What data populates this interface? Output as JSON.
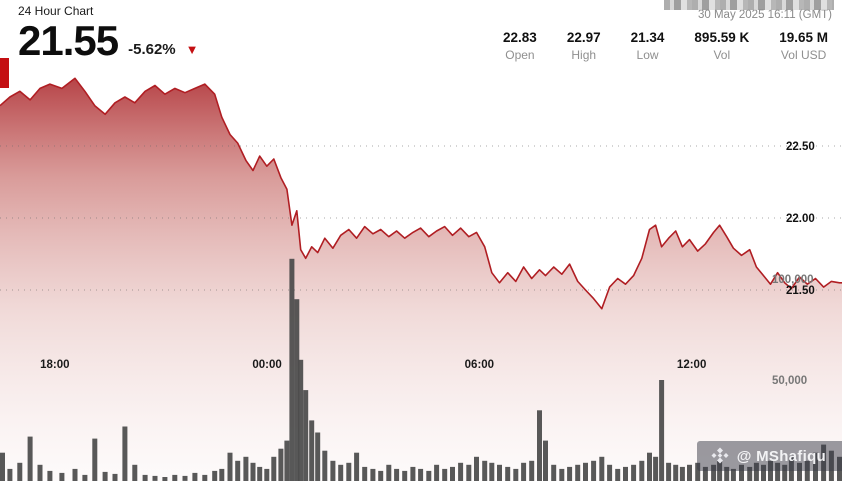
{
  "header": {
    "chart_label": "24 Hour Chart",
    "price": "21.55",
    "change_pct": "-5.62%",
    "down_arrow": "▼",
    "timestamp": "30 May 2025 16:11 (GMT)",
    "stats": [
      {
        "value": "22.83",
        "label": "Open"
      },
      {
        "value": "22.97",
        "label": "High"
      },
      {
        "value": "21.34",
        "label": "Low"
      },
      {
        "value": "895.59 K",
        "label": "Vol"
      },
      {
        "value": "19.65 M",
        "label": "Vol USD"
      }
    ]
  },
  "watermark": {
    "handle": "@ MShafiqu",
    "icon": "binance-diamond"
  },
  "colors": {
    "line_red": "#b01e23",
    "accent_red": "#c40f12",
    "volume_gray": "#4a4a4a",
    "grid_gray": "#666666",
    "label_dark": "#111111",
    "label_gray": "#777777"
  },
  "chart_data": {
    "type": "area",
    "title": "24 Hour Chart",
    "x_unit": "hours since chart start",
    "x_domain": [
      0,
      23.8
    ],
    "x_ticks": [
      {
        "t": 1.55,
        "label": "18:00"
      },
      {
        "t": 7.55,
        "label": "00:00"
      },
      {
        "t": 13.55,
        "label": "06:00"
      },
      {
        "t": 19.55,
        "label": "12:00"
      }
    ],
    "y_ticks": [
      {
        "price": 22.5,
        "label": "22.50"
      },
      {
        "price": 22.0,
        "label": "22.00"
      },
      {
        "price": 21.5,
        "label": "21.50"
      }
    ],
    "volume_ticks": [
      {
        "vol": 100000,
        "label": "100,000"
      },
      {
        "vol": 50000,
        "label": "50,000"
      }
    ],
    "summary": {
      "open": 22.83,
      "high": 22.97,
      "low": 21.34,
      "last": 21.55,
      "change_pct": -5.62,
      "volume": "895.59 K",
      "volume_usd": "19.65 M"
    },
    "t": [
      0,
      0.28,
      0.56,
      0.85,
      1.13,
      1.41,
      1.75,
      2.12,
      2.4,
      2.68,
      2.97,
      3.25,
      3.53,
      3.81,
      4.1,
      4.38,
      4.66,
      4.94,
      5.23,
      5.51,
      5.79,
      6.07,
      6.27,
      6.5,
      6.72,
      6.95,
      7.15,
      7.34,
      7.54,
      7.74,
      7.94,
      8.11,
      8.25,
      8.39,
      8.5,
      8.64,
      8.81,
      8.98,
      9.18,
      9.41,
      9.63,
      9.86,
      10.08,
      10.31,
      10.54,
      10.76,
      10.99,
      11.21,
      11.44,
      11.67,
      11.89,
      12.12,
      12.34,
      12.57,
      12.79,
      13.02,
      13.25,
      13.47,
      13.7,
      13.9,
      14.12,
      14.35,
      14.58,
      14.8,
      15.03,
      15.25,
      15.42,
      15.65,
      15.88,
      16.1,
      16.33,
      16.55,
      16.78,
      17.01,
      17.23,
      17.46,
      17.68,
      17.91,
      18.14,
      18.36,
      18.53,
      18.7,
      18.9,
      19.1,
      19.29,
      19.49,
      19.72,
      19.94,
      20.17,
      20.34,
      20.54,
      20.73,
      20.96,
      21.19,
      21.38,
      21.58,
      21.78,
      21.98,
      22.18,
      22.37,
      22.6,
      22.82,
      23.05,
      23.28,
      23.5,
      23.73
    ],
    "price": [
      22.78,
      22.84,
      22.88,
      22.82,
      22.9,
      22.93,
      22.9,
      22.97,
      22.88,
      22.78,
      22.72,
      22.8,
      22.84,
      22.8,
      22.88,
      22.92,
      22.86,
      22.9,
      22.87,
      22.9,
      22.93,
      22.86,
      22.7,
      22.58,
      22.52,
      22.4,
      22.33,
      22.43,
      22.36,
      22.41,
      22.28,
      22.2,
      21.95,
      22.05,
      21.78,
      21.72,
      21.8,
      21.76,
      21.86,
      21.79,
      21.88,
      21.92,
      21.86,
      21.94,
      21.89,
      21.92,
      21.87,
      21.91,
      21.86,
      21.9,
      21.93,
      21.87,
      21.91,
      21.94,
      21.88,
      21.93,
      21.87,
      21.9,
      21.8,
      21.62,
      21.55,
      21.62,
      21.56,
      21.66,
      21.58,
      21.64,
      21.6,
      21.66,
      21.61,
      21.68,
      21.56,
      21.5,
      21.44,
      21.37,
      21.52,
      21.58,
      21.54,
      21.6,
      21.72,
      21.92,
      21.95,
      21.8,
      21.86,
      21.91,
      21.8,
      21.85,
      21.77,
      21.82,
      21.9,
      21.95,
      21.87,
      21.79,
      21.74,
      21.78,
      21.66,
      21.6,
      21.54,
      21.62,
      21.55,
      21.51,
      21.59,
      21.54,
      21.58,
      21.52,
      21.56,
      21.55
    ],
    "volume": [
      14000,
      6000,
      9000,
      22000,
      8000,
      5000,
      4000,
      6000,
      3000,
      21000,
      4500,
      3500,
      27000,
      8000,
      3000,
      2500,
      2000,
      3000,
      2500,
      4000,
      3000,
      5000,
      6000,
      14000,
      10000,
      12000,
      9000,
      7000,
      6000,
      12000,
      16000,
      20000,
      110000,
      90000,
      60000,
      45000,
      30000,
      24000,
      15000,
      10000,
      8000,
      9000,
      14000,
      7000,
      6000,
      5000,
      8000,
      6000,
      5000,
      7000,
      6000,
      5000,
      8000,
      6000,
      7000,
      9000,
      8000,
      12000,
      10000,
      9000,
      8000,
      7000,
      6000,
      9000,
      10000,
      35000,
      20000,
      8000,
      6000,
      7000,
      8000,
      9000,
      10000,
      12000,
      8000,
      6000,
      7000,
      8000,
      10000,
      14000,
      12000,
      50000,
      9000,
      8000,
      7000,
      8000,
      9000,
      7000,
      8000,
      10000,
      7000,
      6000,
      8000,
      7000,
      9000,
      8000,
      10000,
      9000,
      8000,
      12000,
      9000,
      10000,
      14000,
      18000,
      15000,
      12000
    ]
  }
}
